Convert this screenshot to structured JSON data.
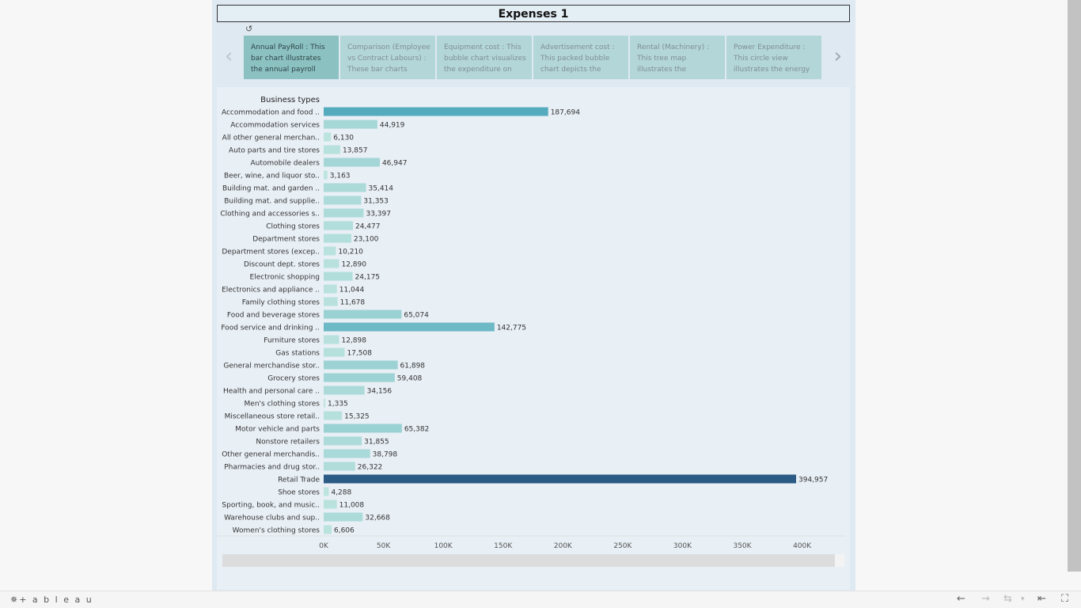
{
  "dashboard": {
    "title": "Expenses 1"
  },
  "story": {
    "points": [
      "Annual PayRoll : This bar chart illustrates the annual payroll",
      "Comparison (Employee vs Contract Labours) : These bar charts",
      "Equipment cost : This bubble chart visualizes the expenditure on",
      "Advertisement cost : This packed bubble chart depicts the",
      "Rental (Machinery) : This tree map illustrates the",
      "Power Expenditure : This circle view illustrates the energy"
    ],
    "active_index": 0
  },
  "icons": {
    "revert": "revert-icon",
    "prev": "chevron-left-icon",
    "next": "chevron-right-icon"
  },
  "toolbar": {
    "logo": "✵+ a b l e a u",
    "undo": "←",
    "redo": "→",
    "revert": "⇆",
    "revert_menu": "▾",
    "reset": "⇤",
    "fullscreen": "⛶"
  },
  "chart_data": {
    "type": "bar",
    "orientation": "horizontal",
    "axis_header": "Business types",
    "categories": [
      "Accommodation and food ..",
      "Accommodation services",
      "All other general merchan..",
      "Auto parts and tire stores",
      "Automobile dealers",
      "Beer, wine, and liquor sto..",
      "Building mat. and garden ..",
      "Building mat. and supplie..",
      "Clothing and accessories s..",
      "Clothing stores",
      "Department stores",
      "Department stores (excep..",
      "Discount dept. stores",
      "Electronic shopping",
      "Electronics and appliance ..",
      "Family clothing stores",
      "Food and beverage stores",
      "Food service and drinking ..",
      "Furniture stores",
      "Gas stations",
      "General merchandise stor..",
      "Grocery stores",
      "Health and personal care ..",
      "Men's clothing stores",
      "Miscellaneous store retail..",
      "Motor vehicle and parts",
      "Nonstore retailers",
      "Other general merchandis..",
      "Pharmacies and drug stor..",
      "Retail Trade",
      "Shoe stores",
      "Sporting, book, and  music..",
      "Warehouse clubs and sup..",
      "Women's clothing stores"
    ],
    "values": [
      187694,
      44919,
      6130,
      13857,
      46947,
      3163,
      35414,
      31353,
      33397,
      24477,
      23100,
      10210,
      12890,
      24175,
      11044,
      11678,
      65074,
      142775,
      12898,
      17508,
      61898,
      59408,
      34156,
      1335,
      15325,
      65382,
      31855,
      38798,
      26322,
      394957,
      4288,
      11008,
      32668,
      6606
    ],
    "value_labels": [
      "187,694",
      "44,919",
      "6,130",
      "13,857",
      "46,947",
      "3,163",
      "35,414",
      "31,353",
      "33,397",
      "24,477",
      "23,100",
      "10,210",
      "12,890",
      "24,175",
      "11,044",
      "11,678",
      "65,074",
      "142,775",
      "12,898",
      "17,508",
      "61,898",
      "59,408",
      "34,156",
      "1,335",
      "15,325",
      "65,382",
      "31,855",
      "38,798",
      "26,322",
      "394,957",
      "4,288",
      "11,008",
      "32,668",
      "6,606"
    ],
    "x_ticks": [
      "0K",
      "50K",
      "100K",
      "150K",
      "200K",
      "250K",
      "300K",
      "350K",
      "400K"
    ],
    "xlim": [
      0,
      435000
    ],
    "grid": false,
    "legend": "none",
    "color_scale": {
      "low": "#bfe5df",
      "mid": "#4fa8bc",
      "high": "#2b5b85"
    }
  }
}
